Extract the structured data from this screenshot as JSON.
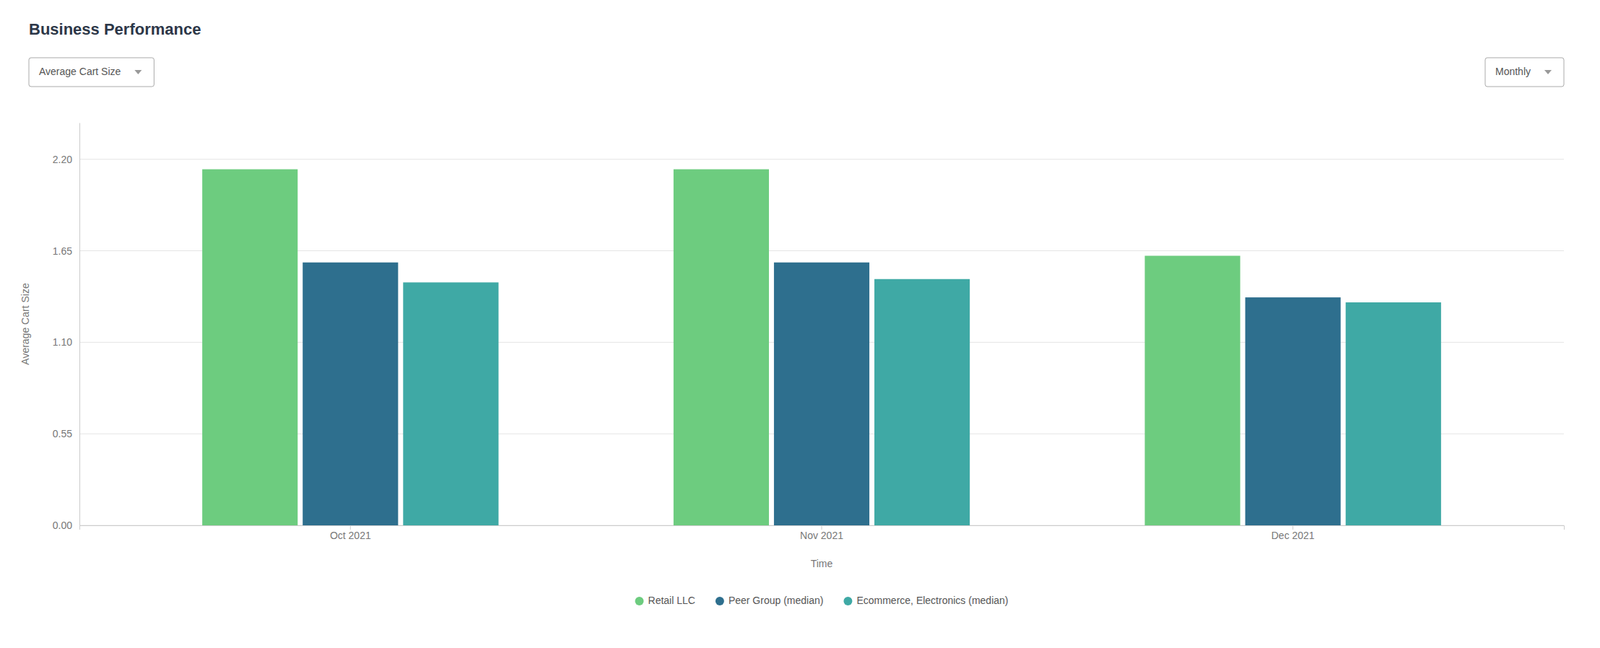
{
  "chart_data": {
    "type": "bar",
    "title": "Business Performance",
    "annotations": [
      "Average Cart Size",
      "Monthly"
    ],
    "categories": [
      "Oct 2021",
      "Nov 2021",
      "Dec 2021"
    ],
    "series": [
      {
        "name": "Retail LLC",
        "values": [
          2.14,
          2.14,
          1.62
        ],
        "color": "#6dcc7f"
      },
      {
        "name": "Peer Group (median)",
        "values": [
          1.58,
          1.58,
          1.37
        ],
        "color": "#2e6f8e"
      },
      {
        "name": "Ecommerce, Electronics (median)",
        "values": [
          1.46,
          1.48,
          1.34
        ],
        "color": "#3fa9a5"
      }
    ],
    "xlabel": "Time",
    "ylabel": "Average Cart Size",
    "ylim": [
      0.0,
      2.42
    ],
    "yticks": [
      {
        "value": 0.0,
        "label": "0.00"
      },
      0.55,
      {
        "value": 1.1,
        "label": "1.10"
      },
      1.65,
      {
        "value": 2.2,
        "label": "2.20"
      }
    ],
    "grid": true,
    "legend": "bottom"
  }
}
